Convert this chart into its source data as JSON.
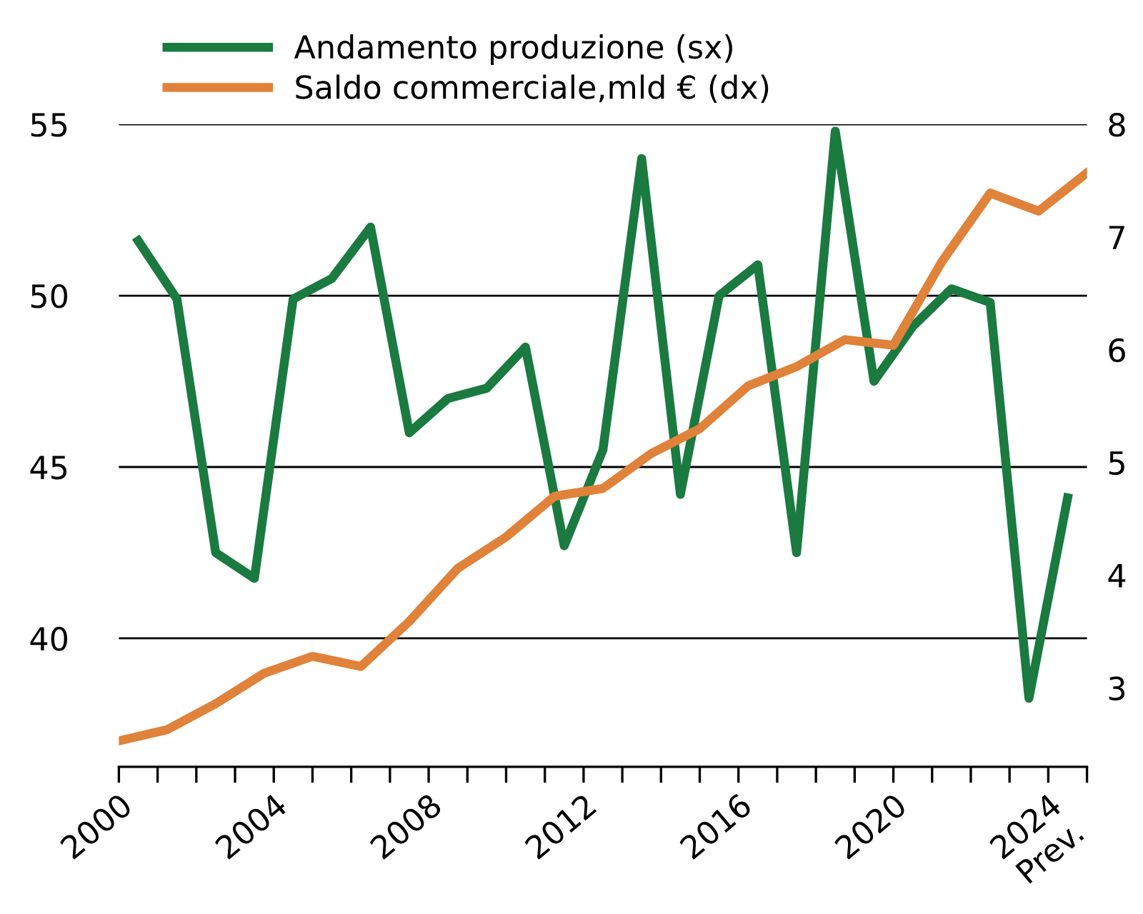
{
  "chart_data": {
    "type": "line",
    "xlim": [
      2000,
      2025
    ],
    "xticks": [
      2000,
      {
        "value": 2001,
        "label": null
      },
      {
        "value": 2002,
        "label": null
      },
      {
        "value": 2003,
        "label": null
      },
      2004,
      {
        "value": 2005,
        "label": null
      },
      {
        "value": 2006,
        "label": null
      },
      {
        "value": 2007,
        "label": null
      },
      2008,
      {
        "value": 2009,
        "label": null
      },
      {
        "value": 2010,
        "label": null
      },
      {
        "value": 2011,
        "label": null
      },
      2012,
      {
        "value": 2013,
        "label": null
      },
      {
        "value": 2014,
        "label": null
      },
      {
        "value": 2015,
        "label": null
      },
      2016,
      {
        "value": 2017,
        "label": null
      },
      {
        "value": 2018,
        "label": null
      },
      {
        "value": 2019,
        "label": null
      },
      2020,
      {
        "value": 2021,
        "label": null
      },
      {
        "value": 2022,
        "label": null
      },
      {
        "value": 2023,
        "label": null
      },
      {
        "value": 2024,
        "label": "2024\nPrev."
      },
      {
        "value": 2025,
        "label": null
      }
    ],
    "ylim": [
      36.25,
      55
    ],
    "yticks": [
      40,
      45,
      50,
      55
    ],
    "y2lim": [
      2.3,
      8
    ],
    "y2ticks": [
      3,
      4,
      5,
      6,
      7,
      8
    ],
    "grid": "y",
    "legend": "top left",
    "line_style": "solid",
    "marker": "none",
    "series": [
      {
        "name": "Andamento produzione (sx)",
        "color": "#1a7a40",
        "x": [
          2000.5,
          2001.5,
          2002.5,
          2003.5,
          2004.5,
          2005.5,
          2006.5,
          2007.5,
          2008.5,
          2009.5,
          2010.5,
          2011.5,
          2012.5,
          2013.5,
          2014.5,
          2015.5,
          2016.5,
          2017.5,
          2018.5,
          2019.5,
          2020.5,
          2021.5,
          2022.5,
          2023.5,
          2024.5
        ],
        "values": [
          51.6,
          49.9,
          42.5,
          41.75,
          49.9,
          50.5,
          52.0,
          46.0,
          47.0,
          47.3,
          48.5,
          42.7,
          45.5,
          54.0,
          44.2,
          50.0,
          50.9,
          42.5,
          54.8,
          47.5,
          49.1,
          50.2,
          49.8,
          38.25,
          44.1
        ]
      },
      {
        "name": "Saldo commerciale,mld € (dx)",
        "color": "#e0823a",
        "axis": "y2",
        "x": [
          2000,
          2001.25,
          2002.5,
          2003.75,
          2005,
          2006.25,
          2007.5,
          2008.75,
          2010,
          2011.25,
          2012.5,
          2013.75,
          2015,
          2016.25,
          2017.5,
          2018.75,
          2020,
          2021.25,
          2022.5,
          2023.75,
          2025
        ],
        "values": [
          2.53,
          2.63,
          2.86,
          3.13,
          3.28,
          3.19,
          3.59,
          4.06,
          4.34,
          4.7,
          4.77,
          5.08,
          5.3,
          5.68,
          5.85,
          6.09,
          6.04,
          6.78,
          7.39,
          7.23,
          7.57
        ]
      }
    ]
  }
}
